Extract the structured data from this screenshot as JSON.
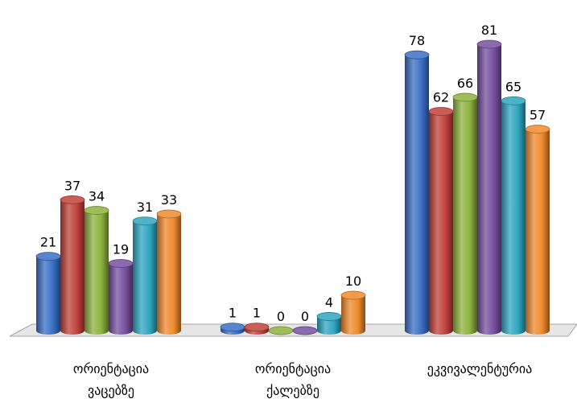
{
  "chart_data": {
    "type": "bar",
    "style": "3d-cylinder",
    "categories": [
      [
        "ორიენტაცია",
        "ვაცებზე"
      ],
      [
        "ორიენტაცია",
        "ქალებზე"
      ],
      [
        "ეკვივალენტურია"
      ]
    ],
    "series": [
      {
        "color": "#3a6fc4",
        "values": [
          21,
          1,
          78
        ]
      },
      {
        "color": "#c0413b",
        "values": [
          37,
          1,
          62
        ]
      },
      {
        "color": "#8db33f",
        "values": [
          34,
          0,
          66
        ]
      },
      {
        "color": "#7650a0",
        "values": [
          19,
          0,
          81
        ]
      },
      {
        "color": "#2fa6c0",
        "values": [
          31,
          4,
          65
        ]
      },
      {
        "color": "#ef8a2d",
        "values": [
          33,
          10,
          57
        ]
      }
    ],
    "ylim": [
      0,
      81
    ],
    "grid": false,
    "legend": "none",
    "floor_color": "#e6e6e6"
  }
}
